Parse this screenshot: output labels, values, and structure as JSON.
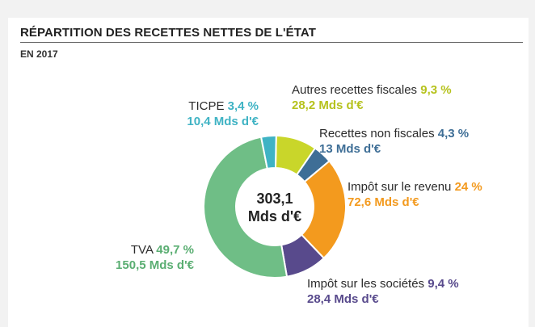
{
  "title": "RÉPARTITION DES RECETTES NETTES DE L'ÉTAT",
  "subtitle": "EN 2017",
  "center": {
    "line1": "303,1",
    "line2": "Mds d'€"
  },
  "chart_data": {
    "type": "pie",
    "title": "RÉPARTITION DES RECETTES NETTES DE L'ÉTAT",
    "subtitle": "EN 2017",
    "total": "303,1 Mds d'€",
    "slices": [
      {
        "name": "Autres recettes fiscales",
        "pct_label": "9,3 %",
        "amount_label": "28,2 Mds d'€",
        "value": 9.3,
        "color": "#c9d62a"
      },
      {
        "name": "Recettes non fiscales",
        "pct_label": "4,3 %",
        "amount_label": "13 Mds d'€",
        "value": 4.3,
        "color": "#3e6e96"
      },
      {
        "name": "Impôt sur le revenu",
        "pct_label": "24 %",
        "amount_label": "72,6 Mds d'€",
        "value": 24,
        "color": "#f39a1e"
      },
      {
        "name": "Impôt sur les sociétés",
        "pct_label": "9,4 %",
        "amount_label": "28,4 Mds d'€",
        "value": 9.4,
        "color": "#584a8c"
      },
      {
        "name": "TVA",
        "pct_label": "49,7 %",
        "amount_label": "150,5 Mds d'€",
        "value": 49.7,
        "color": "#6fbe86"
      },
      {
        "name": "TICPE",
        "pct_label": "3,4 %",
        "amount_label": "10,4 Mds d'€",
        "value": 3.4,
        "color": "#3fb3c4"
      }
    ]
  }
}
